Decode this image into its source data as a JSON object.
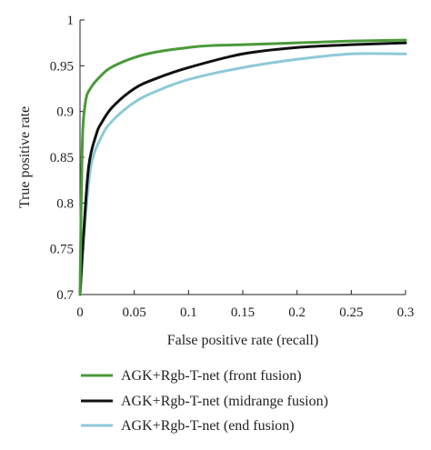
{
  "chart_data": {
    "type": "line",
    "title": "",
    "xlabel": "False positive rate (recall)",
    "ylabel": "True positive rate",
    "xlim": [
      0,
      0.3
    ],
    "ylim": [
      0.7,
      1.0
    ],
    "x_ticks": [
      "0",
      "0.05",
      "0.1",
      "0.15",
      "0.2",
      "0.25",
      "0.3"
    ],
    "y_ticks": [
      "0.7",
      "0.75",
      "0.8",
      "0.85",
      "0.9",
      "0.95",
      "1"
    ],
    "grid": false,
    "legend_position": "bottom",
    "series": [
      {
        "name": "AGK+Rgb-T-net (front fusion)",
        "color": "#4a9a3a",
        "x": [
          0,
          0.002,
          0.005,
          0.01,
          0.02,
          0.03,
          0.05,
          0.07,
          0.1,
          0.12,
          0.15,
          0.2,
          0.25,
          0.3
        ],
        "y": [
          0.7,
          0.86,
          0.91,
          0.926,
          0.94,
          0.949,
          0.959,
          0.965,
          0.97,
          0.972,
          0.973,
          0.975,
          0.977,
          0.978
        ]
      },
      {
        "name": "AGK+Rgb-T-net (midrange fusion)",
        "color": "#111111",
        "x": [
          0,
          0.003,
          0.008,
          0.015,
          0.02,
          0.03,
          0.05,
          0.07,
          0.1,
          0.15,
          0.2,
          0.25,
          0.3
        ],
        "y": [
          0.7,
          0.76,
          0.84,
          0.875,
          0.888,
          0.905,
          0.925,
          0.936,
          0.948,
          0.963,
          0.97,
          0.973,
          0.975
        ]
      },
      {
        "name": "AGK+Rgb-T-net (end fusion)",
        "color": "#8ec9d8",
        "x": [
          0,
          0.004,
          0.01,
          0.02,
          0.03,
          0.05,
          0.07,
          0.1,
          0.15,
          0.2,
          0.25,
          0.3
        ],
        "y": [
          0.7,
          0.77,
          0.84,
          0.873,
          0.89,
          0.91,
          0.922,
          0.935,
          0.948,
          0.957,
          0.963,
          0.963
        ]
      }
    ]
  }
}
